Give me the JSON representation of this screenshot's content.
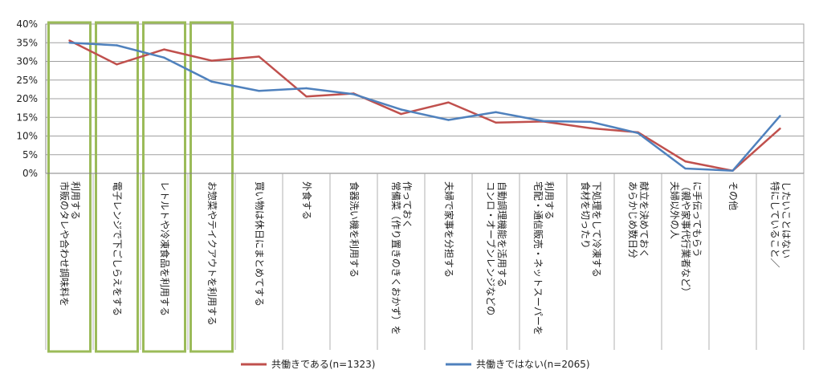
{
  "chart_data": {
    "type": "line",
    "title": "",
    "xlabel": "",
    "ylabel": "",
    "ylim": [
      0,
      40
    ],
    "y_ticks": [
      "0%",
      "5%",
      "10%",
      "15%",
      "20%",
      "25%",
      "30%",
      "35%",
      "40%"
    ],
    "grid": "horizontal",
    "legend_position": "bottom",
    "categories": [
      [
        "市販のタレや合わせ調味料を",
        "利用する"
      ],
      [
        "電子レンジで下ごしらえをする"
      ],
      [
        "レトルトや冷凍食品を利用する"
      ],
      [
        "お惣菜やテイクアウトを利用する"
      ],
      [
        "買い物は休日にまとめてする"
      ],
      [
        "外食する"
      ],
      [
        "食器洗い機を利用する"
      ],
      [
        "常備菜（作り置きのきくおかず）を",
        "作っておく"
      ],
      [
        "夫婦で家事を分担する"
      ],
      [
        "コンロ・オーブンレンジなどの",
        "自動調理機能を活用する"
      ],
      [
        "宅配・通信販売・ネットスーパーを",
        "利用する"
      ],
      [
        "食材を切ったり",
        "下処理をして冷凍する"
      ],
      [
        "あらかじめ数日分",
        "献立を決めておく"
      ],
      [
        "夫婦以外の人",
        "（親や家事代行業者など）",
        "に手伝ってもらう"
      ],
      [
        "その他"
      ],
      [
        "特にしていること／",
        "したいことはない"
      ]
    ],
    "series": [
      {
        "name": "共働きである(n=1323)",
        "color": "#c0504d",
        "values": [
          35.6,
          29.2,
          33.2,
          30.2,
          31.3,
          20.6,
          21.4,
          15.9,
          19.0,
          13.6,
          13.9,
          12.1,
          11.0,
          3.2,
          0.7,
          12.0
        ]
      },
      {
        "name": "共働きではない(n=2065)",
        "color": "#4f81bd",
        "values": [
          35.0,
          34.3,
          31.0,
          24.6,
          22.1,
          22.8,
          21.2,
          17.1,
          14.3,
          16.4,
          14.0,
          13.8,
          10.8,
          1.3,
          0.7,
          15.4
        ]
      }
    ],
    "highlighted_categories": [
      0,
      1,
      2,
      3
    ],
    "highlight_color": "#9bbb59",
    "grid_color": "#a0a0a0",
    "axis_color": "#808080"
  }
}
